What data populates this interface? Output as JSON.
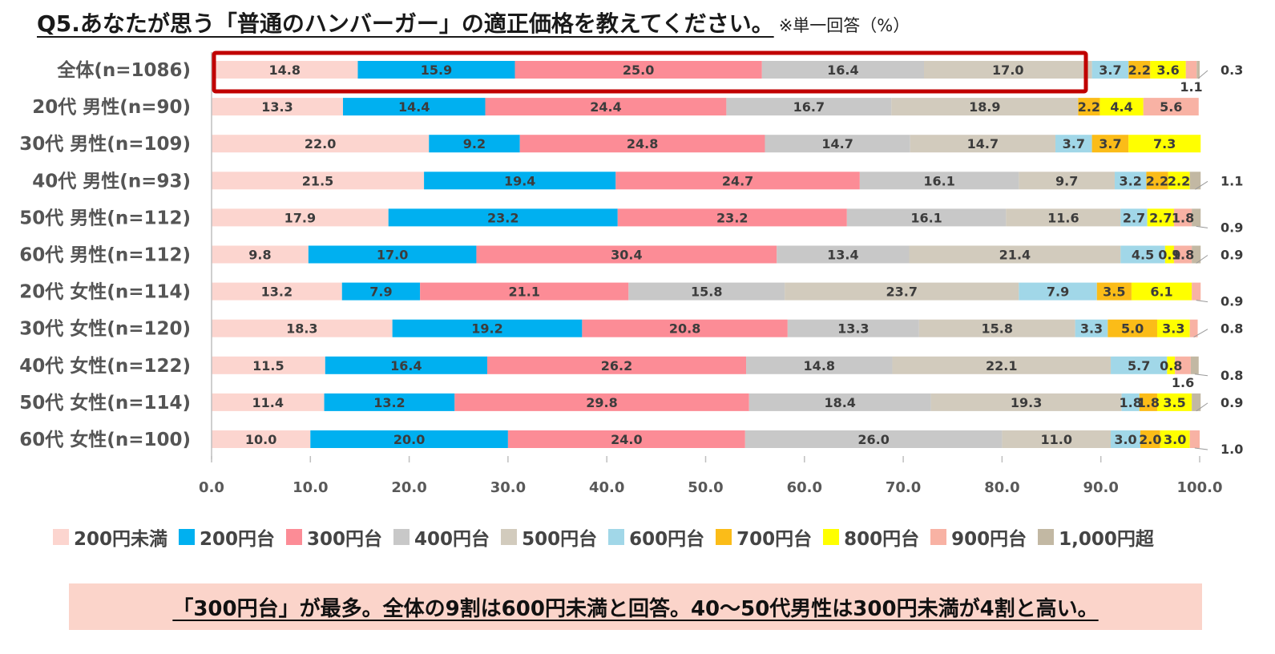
{
  "header": {
    "title": "Q5.あなたが思う「普通のハンバーガー」の適正価格を教えてください。",
    "note": "※単一回答（%）"
  },
  "chart_data": {
    "type": "bar",
    "orientation": "horizontal",
    "stacked": true,
    "xlim": [
      0,
      100
    ],
    "xticks": [
      "0.0",
      "10.0",
      "20.0",
      "30.0",
      "40.0",
      "50.0",
      "60.0",
      "70.0",
      "80.0",
      "90.0",
      "100.0"
    ],
    "categories": [
      "全体(n=1086)",
      "20代 男性(n=90)",
      "30代 男性(n=109)",
      "40代 男性(n=93)",
      "50代 男性(n=112)",
      "60代 男性(n=112)",
      "20代 女性(n=114)",
      "30代 女性(n=120)",
      "40代 女性(n=122)",
      "50代 女性(n=114)",
      "60代 女性(n=100)"
    ],
    "series": [
      {
        "name": "200円未満",
        "color": "#fcd5cf",
        "values": [
          14.8,
          13.3,
          22.0,
          21.5,
          17.9,
          9.8,
          13.2,
          18.3,
          11.5,
          11.4,
          10.0
        ]
      },
      {
        "name": "200円台",
        "color": "#00b0f0",
        "values": [
          15.9,
          14.4,
          9.2,
          19.4,
          23.2,
          17.0,
          7.9,
          19.2,
          16.4,
          13.2,
          20.0
        ]
      },
      {
        "name": "300円台",
        "color": "#fc8c96",
        "values": [
          25.0,
          24.4,
          24.8,
          24.7,
          23.2,
          30.4,
          21.1,
          20.8,
          26.2,
          29.8,
          24.0
        ]
      },
      {
        "name": "400円台",
        "color": "#c8c8c8",
        "values": [
          16.4,
          16.7,
          14.7,
          16.1,
          16.1,
          13.4,
          15.8,
          13.3,
          14.8,
          18.4,
          26.0
        ]
      },
      {
        "name": "500円台",
        "color": "#d2cbbd",
        "values": [
          17.0,
          18.9,
          14.7,
          9.7,
          11.6,
          21.4,
          23.7,
          15.8,
          22.1,
          19.3,
          11.0
        ]
      },
      {
        "name": "600円台",
        "color": "#a1d7e8",
        "values": [
          3.7,
          0.0,
          3.7,
          3.2,
          2.7,
          4.5,
          7.9,
          3.3,
          5.7,
          1.8,
          3.0
        ]
      },
      {
        "name": "700円台",
        "color": "#fbbc18",
        "values": [
          2.2,
          2.2,
          3.7,
          2.2,
          0.0,
          0.0,
          3.5,
          5.0,
          0.0,
          1.8,
          2.0
        ]
      },
      {
        "name": "800円台",
        "color": "#ffff00",
        "values": [
          3.6,
          4.4,
          7.3,
          2.2,
          2.7,
          0.9,
          6.1,
          3.3,
          0.8,
          3.5,
          3.0
        ]
      },
      {
        "name": "900円台",
        "color": "#f8b2a4",
        "values": [
          1.1,
          5.6,
          0.0,
          0.0,
          1.8,
          1.8,
          0.9,
          0.8,
          1.6,
          0.0,
          1.0
        ]
      },
      {
        "name": "1,000円超",
        "color": "#c2b8a3",
        "values": [
          0.3,
          0.0,
          0.0,
          1.1,
          0.9,
          0.9,
          0.0,
          0.0,
          0.8,
          0.9,
          0.0
        ]
      }
    ]
  },
  "footer": {
    "text": "「300円台」が最多。全体の9割は600円未満と回答。40～50代男性は300円未満が4割と高い。"
  }
}
